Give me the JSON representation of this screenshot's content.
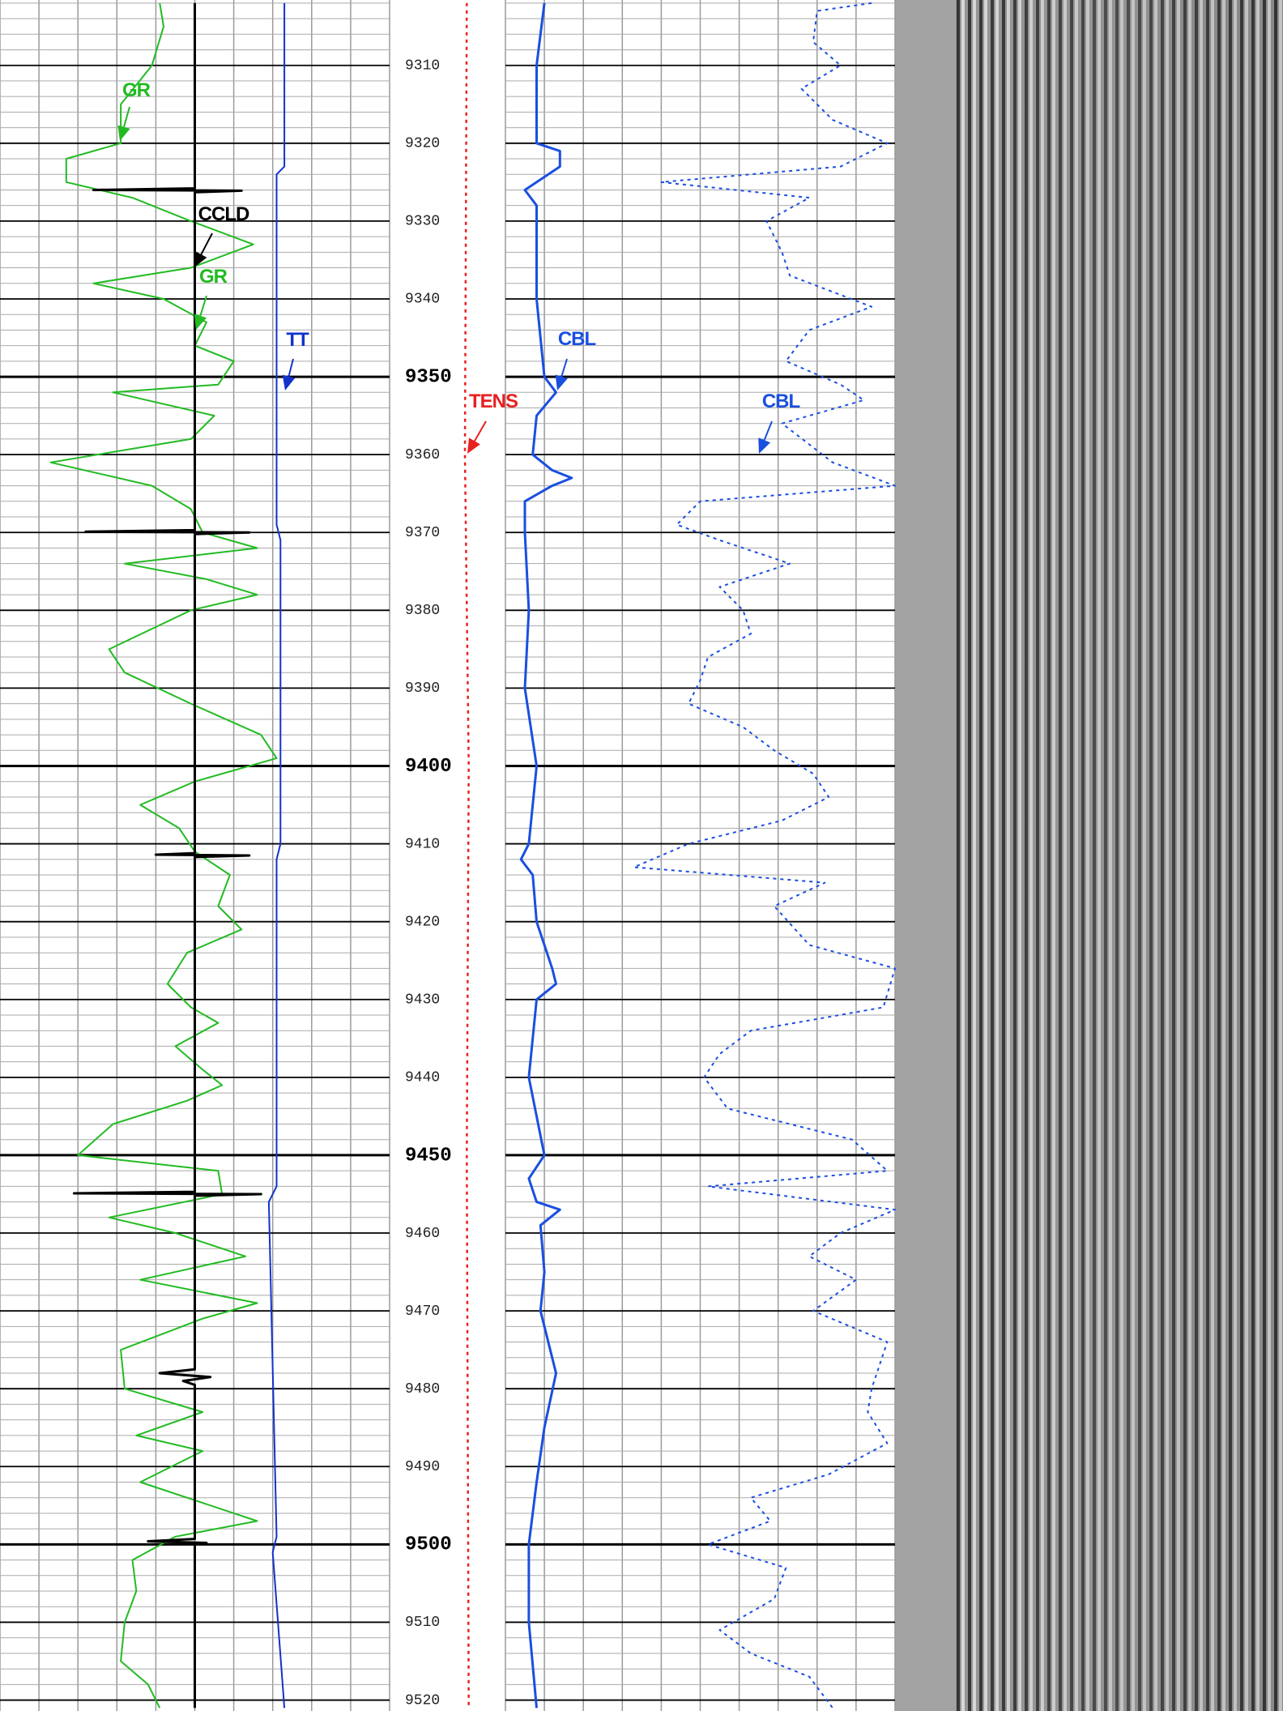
{
  "chart_data": {
    "type": "well-log",
    "ylim": [
      9301.6,
      9521.4
    ],
    "yticks": [
      9310,
      9320,
      9330,
      9340,
      9350,
      9360,
      9370,
      9380,
      9390,
      9400,
      9410,
      9420,
      9430,
      9440,
      9450,
      9460,
      9470,
      9480,
      9490,
      9500,
      9510,
      9520
    ],
    "tracks": [
      {
        "xlim": [
          0,
          10
        ],
        "grid": true,
        "curves": [
          {
            "name": "GR",
            "color": "#22bb22",
            "width": 2,
            "dash": false,
            "depth": [
              9302,
              9305,
              9310,
              9315,
              9320,
              9322,
              9325,
              9327,
              9330,
              9333,
              9336,
              9338,
              9340,
              9343,
              9346,
              9348,
              9351,
              9352,
              9355,
              9358,
              9361,
              9364,
              9367,
              9370,
              9372,
              9374,
              9376,
              9378,
              9380,
              9385,
              9388,
              9392,
              9396,
              9399,
              9402,
              9405,
              9408,
              9411,
              9414,
              9418,
              9421,
              9424,
              9428,
              9431,
              9433,
              9436,
              9439,
              9441,
              9443,
              9446,
              9450,
              9452,
              9455,
              9458,
              9460,
              9463,
              9466,
              9469,
              9471,
              9475,
              9480,
              9483,
              9486,
              9488,
              9492,
              9497,
              9499,
              9502,
              9506,
              9510,
              9515,
              9518,
              9521
            ],
            "values": [
              4.1,
              4.2,
              3.9,
              3.1,
              3.1,
              1.7,
              1.7,
              3.4,
              4.9,
              6.5,
              4.9,
              2.4,
              4.2,
              5.3,
              5.0,
              6.0,
              5.6,
              2.9,
              5.5,
              4.9,
              1.3,
              3.9,
              4.9,
              5.2,
              6.6,
              3.2,
              5.3,
              6.6,
              4.9,
              2.8,
              3.2,
              4.9,
              6.7,
              7.1,
              5.0,
              3.6,
              4.6,
              5.0,
              5.9,
              5.6,
              6.2,
              4.8,
              4.3,
              4.9,
              5.6,
              4.5,
              5.2,
              5.7,
              4.8,
              2.9,
              2.0,
              5.6,
              5.7,
              2.8,
              4.5,
              6.3,
              3.6,
              6.6,
              5.2,
              3.1,
              3.2,
              5.2,
              3.5,
              5.2,
              3.6,
              6.6,
              4.5,
              3.4,
              3.5,
              3.2,
              3.1,
              3.8,
              4.1
            ]
          },
          {
            "name": "CCLD",
            "color": "#000000",
            "width": 3,
            "dash": false,
            "depth": [
              9302,
              9325.8,
              9326,
              9326.1,
              9326.3,
              9369.7,
              9369.9,
              9370,
              9370.2,
              9411.2,
              9411.4,
              9411.5,
              9411.7,
              9454.7,
              9454.9,
              9455,
              9455.2,
              9477.5,
              9478,
              9478.5,
              9479,
              9479.5,
              9499.3,
              9499.6,
              9499.8,
              9500,
              9521
            ],
            "values": [
              5.0,
              5.0,
              2.4,
              6.2,
              5.0,
              5.0,
              2.2,
              6.4,
              5.0,
              5.0,
              4.0,
              6.4,
              5.0,
              5.0,
              1.9,
              6.7,
              5.0,
              5.0,
              4.1,
              5.4,
              4.7,
              5.0,
              5.0,
              3.8,
              5.3,
              5.0,
              5.0
            ]
          },
          {
            "name": "TT",
            "color": "#1133cc",
            "width": 2,
            "dash": false,
            "depth": [
              9302,
              9323,
              9324,
              9369,
              9371,
              9410,
              9412,
              9454,
              9456,
              9499,
              9501,
              9521
            ],
            "values": [
              7.3,
              7.3,
              7.1,
              7.1,
              7.2,
              7.2,
              7.1,
              7.1,
              6.9,
              7.1,
              7.0,
              7.3
            ]
          }
        ]
      },
      {
        "xlim": [
          0,
          3
        ],
        "grid": false,
        "curves": [
          {
            "name": "TENS",
            "color": "#e82020",
            "width": 2.5,
            "dash": true,
            "depth": [
              9302,
              9360,
              9400,
              9450,
              9521
            ],
            "values": [
              2.0,
              1.95,
              2.05,
              2.0,
              2.05
            ]
          }
        ]
      },
      {
        "xlim": [
          0,
          10
        ],
        "grid": true,
        "curves": [
          {
            "name": "CBL",
            "color": "#1a4fe0",
            "width": 3,
            "dash": false,
            "depth": [
              9302,
              9310,
              9320,
              9321,
              9323,
              9326,
              9328,
              9340,
              9350,
              9352,
              9355,
              9360,
              9362,
              9363,
              9364,
              9366,
              9370,
              9380,
              9390,
              9400,
              9410,
              9412,
              9414,
              9420,
              9426,
              9428,
              9430,
              9440,
              9450,
              9453,
              9456,
              9457,
              9459,
              9465,
              9470,
              9478,
              9485,
              9492,
              9500,
              9510,
              9521
            ],
            "values": [
              1.0,
              0.8,
              0.8,
              1.4,
              1.4,
              0.5,
              0.8,
              0.8,
              1.0,
              1.3,
              0.8,
              0.7,
              1.2,
              1.7,
              1.2,
              0.5,
              0.5,
              0.6,
              0.5,
              0.8,
              0.6,
              0.4,
              0.7,
              0.8,
              1.2,
              1.3,
              0.8,
              0.6,
              1.0,
              0.6,
              0.8,
              1.4,
              0.9,
              1.0,
              0.9,
              1.3,
              1.0,
              0.8,
              0.6,
              0.6,
              0.8
            ]
          },
          {
            "name": "CBL",
            "color": "#1a4fe0",
            "width": 2,
            "dash": true,
            "depth": [
              9302,
              9303,
              9307,
              9310,
              9313,
              9317,
              9320,
              9323,
              9325,
              9327,
              9330,
              9334,
              9337,
              9341,
              9344,
              9348,
              9351,
              9353,
              9356,
              9361,
              9364,
              9366,
              9369,
              9371,
              9374,
              9377,
              9380,
              9383,
              9386,
              9389,
              9392,
              9395,
              9398,
              9401,
              9404,
              9407,
              9410,
              9413,
              9415,
              9418,
              9423,
              9426,
              9431,
              9434,
              9437,
              9440,
              9444,
              9448,
              9452,
              9454,
              9457,
              9460,
              9463,
              9466,
              9470,
              9474,
              9480,
              9483,
              9487,
              9491,
              9494,
              9497,
              9500,
              9503,
              9507,
              9511,
              9514,
              9517,
              9521
            ],
            "values": [
              9.4,
              8.0,
              7.9,
              8.6,
              7.6,
              8.4,
              9.8,
              8.6,
              4.0,
              7.8,
              6.7,
              7.1,
              7.3,
              9.4,
              7.8,
              7.2,
              8.6,
              9.2,
              7.1,
              8.4,
              10.0,
              5.0,
              4.4,
              5.5,
              7.3,
              5.5,
              6.1,
              6.3,
              5.2,
              5.0,
              4.7,
              6.1,
              6.9,
              7.9,
              8.3,
              7.1,
              4.7,
              3.3,
              8.2,
              6.9,
              7.8,
              10.0,
              9.7,
              6.3,
              5.5,
              5.1,
              5.7,
              8.9,
              9.8,
              5.2,
              10.0,
              8.6,
              7.8,
              9.0,
              7.9,
              9.8,
              9.4,
              9.3,
              9.8,
              8.3,
              6.3,
              6.8,
              5.2,
              7.2,
              6.9,
              5.5,
              6.3,
              7.8,
              8.4
            ]
          }
        ]
      }
    ]
  }
}
